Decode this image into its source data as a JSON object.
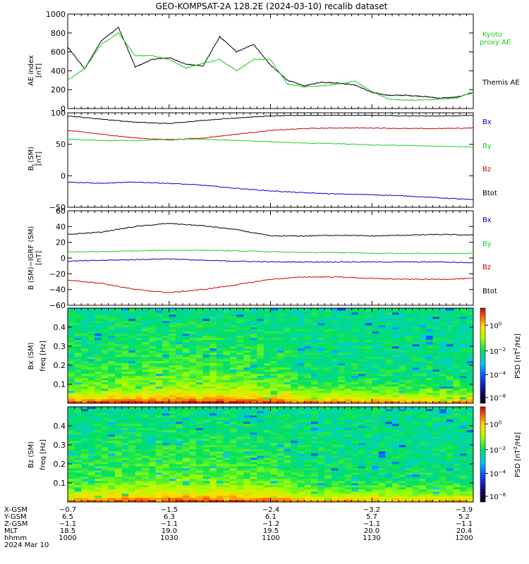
{
  "title": "GEO-KOMPSAT-2A 128.2E (2024-03-10) recalib dataset",
  "panels": {
    "ae": {
      "ylabel_1": "AE index",
      "ylabel_2": "[nT]",
      "legend": [
        {
          "text": "Kyoto",
          "color": "#22cc22"
        },
        {
          "text": "proxy AE",
          "color": "#22cc22"
        },
        {
          "text": "Themis AE",
          "color": "#000000"
        }
      ]
    },
    "bt": {
      "ylabel_1": "B",
      "ylabel_sub": "t",
      "ylabel_2": "(SM)",
      "ylabel_3": "[nT]",
      "legend": [
        {
          "text": "Bx",
          "color": "#0000cc"
        },
        {
          "text": "By",
          "color": "#22cc22"
        },
        {
          "text": "Bz",
          "color": "#cc0000"
        },
        {
          "text": "Btot",
          "color": "#000000"
        }
      ]
    },
    "bdiff": {
      "ylabel_1": "B (SM)−IGRF (SM)",
      "ylabel_2": "[nT]",
      "legend": [
        {
          "text": "Bx",
          "color": "#0000cc"
        },
        {
          "text": "By",
          "color": "#22cc22"
        },
        {
          "text": "Bz",
          "color": "#cc0000"
        },
        {
          "text": "Btot",
          "color": "#000000"
        }
      ]
    },
    "spec_bx": {
      "ylabel_1": "Bx (SM)",
      "ylabel_2": "freq [Hz]",
      "cbar_label": "PSD [nT",
      "cbar_label_sup": "2",
      "cbar_label_end": "/Hz]"
    },
    "spec_bz": {
      "ylabel_1": "Bz (SM)",
      "ylabel_2": "freq [Hz]",
      "cbar_label": "PSD [nT",
      "cbar_label_sup": "2",
      "cbar_label_end": "/Hz]"
    }
  },
  "colorbar_ticks": [
    {
      "base": "10",
      "exp": "0"
    },
    {
      "base": "10",
      "exp": "−2"
    },
    {
      "base": "10",
      "exp": "−4"
    },
    {
      "base": "10",
      "exp": "−8"
    }
  ],
  "ephemeris": {
    "row_labels": [
      "X-GSM",
      "Y-GSM",
      "Z-GSM",
      "MLT",
      "hhmm",
      "2024 Mar 10"
    ],
    "columns": [
      {
        "x": "−0.7",
        "y": "6.5",
        "z": "−1.1",
        "mlt": "18.5",
        "hhmm": "1000"
      },
      {
        "x": "−1.5",
        "y": "6.3",
        "z": "−1.1",
        "mlt": "19.0",
        "hhmm": "1030"
      },
      {
        "x": "−2.4",
        "y": "6.1",
        "z": "−1.2",
        "mlt": "19.5",
        "hhmm": "1100"
      },
      {
        "x": "−3.2",
        "y": "5.7",
        "z": "−1.1",
        "mlt": "20.0",
        "hhmm": "1130"
      },
      {
        "x": "−3.9",
        "y": "5.2",
        "z": "−1.1",
        "mlt": "20.4",
        "hhmm": "1200"
      }
    ]
  },
  "chart_data": [
    {
      "type": "line",
      "panel": "ae",
      "x": [
        1000,
        1005,
        1010,
        1015,
        1020,
        1025,
        1030,
        1035,
        1040,
        1045,
        1050,
        1055,
        1100,
        1105,
        1110,
        1115,
        1120,
        1125,
        1130,
        1135,
        1140,
        1145,
        1150,
        1155,
        1200
      ],
      "ylim": [
        0,
        1000
      ],
      "yticks": [
        0,
        200,
        400,
        600,
        800,
        1000
      ],
      "series": [
        {
          "name": "Themis AE",
          "color": "#000000",
          "values": [
            650,
            420,
            720,
            860,
            440,
            520,
            540,
            470,
            450,
            760,
            600,
            680,
            460,
            300,
            240,
            280,
            270,
            250,
            170,
            140,
            140,
            130,
            110,
            120,
            170
          ]
        },
        {
          "name": "Kyoto proxy AE",
          "color": "#22cc22",
          "values": [
            300,
            420,
            680,
            800,
            560,
            560,
            520,
            430,
            480,
            520,
            400,
            520,
            520,
            260,
            230,
            240,
            260,
            290,
            180,
            100,
            90,
            90,
            100,
            110,
            180
          ]
        }
      ]
    },
    {
      "type": "line",
      "panel": "bt",
      "x": [
        1000,
        1010,
        1020,
        1030,
        1040,
        1050,
        1100,
        1110,
        1120,
        1130,
        1140,
        1150,
        1200
      ],
      "ylim": [
        -50,
        100
      ],
      "yticks": [
        -50,
        0,
        50,
        100
      ],
      "series": [
        {
          "name": "Btot",
          "color": "#000000",
          "values": [
            95,
            90,
            85,
            83,
            88,
            92,
            95,
            96,
            96,
            96,
            95,
            95,
            96
          ]
        },
        {
          "name": "Bz",
          "color": "#cc0000",
          "values": [
            72,
            66,
            60,
            57,
            60,
            66,
            72,
            75,
            76,
            76,
            75,
            75,
            76
          ]
        },
        {
          "name": "By",
          "color": "#22cc22",
          "values": [
            58,
            56,
            56,
            58,
            58,
            56,
            54,
            52,
            51,
            49,
            48,
            47,
            46
          ]
        },
        {
          "name": "Bx",
          "color": "#0000cc",
          "values": [
            -10,
            -12,
            -10,
            -12,
            -15,
            -20,
            -24,
            -27,
            -29,
            -30,
            -32,
            -35,
            -38
          ]
        }
      ]
    },
    {
      "type": "line",
      "panel": "bdiff",
      "x": [
        1000,
        1010,
        1020,
        1030,
        1040,
        1050,
        1100,
        1110,
        1120,
        1130,
        1140,
        1150,
        1200
      ],
      "ylim": [
        -60,
        60
      ],
      "yticks": [
        -60,
        -40,
        -20,
        0,
        20,
        40,
        60
      ],
      "series": [
        {
          "name": "Btot",
          "color": "#000000",
          "values": [
            30,
            33,
            40,
            44,
            41,
            36,
            28,
            28,
            29,
            28,
            29,
            30,
            29
          ]
        },
        {
          "name": "By",
          "color": "#22cc22",
          "values": [
            8,
            8,
            9,
            10,
            10,
            9,
            8,
            7,
            7,
            6,
            6,
            6,
            6
          ]
        },
        {
          "name": "Bx",
          "color": "#0000cc",
          "values": [
            -4,
            -3,
            -2,
            -1,
            -3,
            -4,
            -5,
            -5,
            -5,
            -5,
            -5,
            -5,
            -6
          ]
        },
        {
          "name": "Bz",
          "color": "#cc0000",
          "values": [
            -28,
            -32,
            -40,
            -44,
            -40,
            -34,
            -27,
            -24,
            -24,
            -26,
            -27,
            -27,
            -26
          ]
        }
      ]
    },
    {
      "type": "heatmap",
      "panel": "spec_bx",
      "ylim": [
        0,
        0.5
      ],
      "yticks": [
        0.1,
        0.2,
        0.3,
        0.4
      ]
    },
    {
      "type": "heatmap",
      "panel": "spec_bz",
      "ylim": [
        0,
        0.5
      ],
      "yticks": [
        0.1,
        0.2,
        0.3,
        0.4
      ]
    }
  ]
}
